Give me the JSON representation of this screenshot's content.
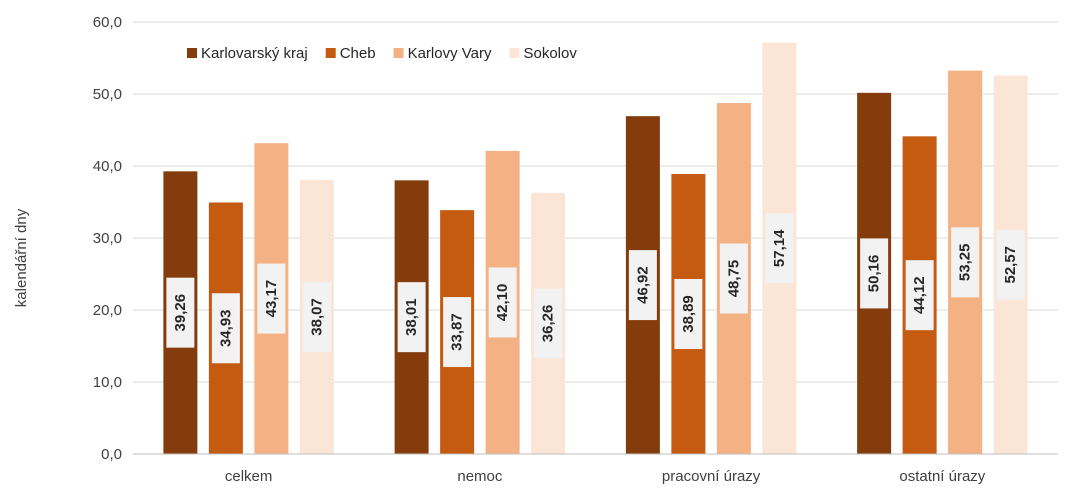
{
  "chart_data": {
    "type": "bar",
    "ylabel": "kalendářní dny",
    "ylim": [
      0,
      60
    ],
    "yticks": [
      "0,0",
      "10,0",
      "20,0",
      "30,0",
      "40,0",
      "50,0",
      "60,0"
    ],
    "grid": true,
    "legend_position": "top-left",
    "categories": [
      "celkem",
      "nemoc",
      "pracovní úrazy",
      "ostatní úrazy"
    ],
    "series": [
      {
        "name": "Karlovarský kraj",
        "color": "#843c0c",
        "values": [
          39.26,
          38.01,
          46.92,
          50.16
        ],
        "labels": [
          "39,26",
          "38,01",
          "46,92",
          "50,16"
        ]
      },
      {
        "name": "Cheb",
        "color": "#c55a11",
        "values": [
          34.93,
          33.87,
          38.89,
          44.12
        ],
        "labels": [
          "34,93",
          "33,87",
          "38,89",
          "44,12"
        ]
      },
      {
        "name": "Karlovy Vary",
        "color": "#f4b183",
        "values": [
          43.17,
          42.1,
          48.75,
          53.25
        ],
        "labels": [
          "43,17",
          "42,10",
          "48,75",
          "53,25"
        ]
      },
      {
        "name": "Sokolov",
        "color": "#fbe5d6",
        "values": [
          38.07,
          36.26,
          57.14,
          52.57
        ],
        "labels": [
          "38,07",
          "36,26",
          "57,14",
          "52,57"
        ]
      }
    ]
  }
}
